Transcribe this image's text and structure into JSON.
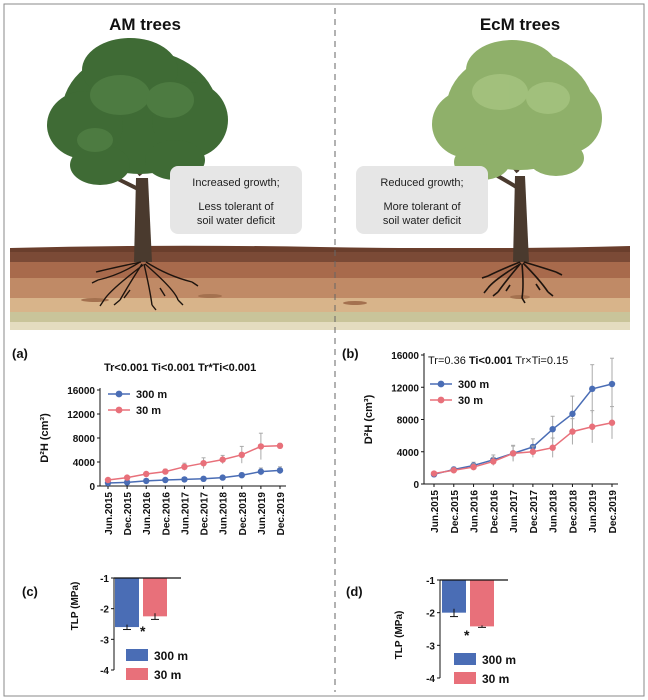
{
  "header": {
    "left_title": "AM trees",
    "right_title": "EcM trees"
  },
  "callouts": {
    "left": [
      "Increased growth;",
      "Less tolerant of",
      "soil water deficit"
    ],
    "right": [
      "Reduced growth;",
      "More tolerant of",
      "soil water deficit"
    ]
  },
  "colors": {
    "series_300m": "#4a6db5",
    "series_30m": "#e8707a",
    "am_canopy": "#3f6b35",
    "ecm_canopy": "#8fb06a",
    "soil": "#a86a4c"
  },
  "chart_data": [
    {
      "id": "a",
      "type": "line",
      "panel_label": "(a)",
      "stats": [
        {
          "text": "Tr<0.001",
          "bold": true
        },
        {
          "text": "Ti<0.001",
          "bold": true
        },
        {
          "text": "Tr*Ti<0.001",
          "bold": true
        }
      ],
      "ylabel": "D²H (cm³)",
      "ylim": [
        0,
        16000
      ],
      "yticks": [
        "0",
        "4000",
        "8000",
        "12000",
        "16000"
      ],
      "categories": [
        "Jun.2015",
        "Dec.2015",
        "Jun.2016",
        "Dec.2016",
        "Jun.2017",
        "Dec.2017",
        "Jun.2018",
        "Dec.2018",
        "Jun.2019",
        "Dec.2019"
      ],
      "series": [
        {
          "name": "300 m",
          "values": [
            500,
            600,
            850,
            1000,
            1100,
            1200,
            1400,
            1800,
            2400,
            2600
          ],
          "errors": [
            100,
            100,
            150,
            200,
            200,
            250,
            300,
            400,
            600,
            600
          ]
        },
        {
          "name": "30 m",
          "values": [
            1000,
            1400,
            2000,
            2400,
            3200,
            3800,
            4400,
            5200,
            6600,
            6700
          ],
          "errors": [
            200,
            250,
            300,
            400,
            600,
            900,
            700,
            1400,
            2200,
            400
          ]
        }
      ],
      "legend": "top-left"
    },
    {
      "id": "b",
      "type": "line",
      "panel_label": "(b)",
      "stats": [
        {
          "text": "Tr=0.36",
          "bold": false
        },
        {
          "text": "Ti<0.001",
          "bold": true
        },
        {
          "text": "Tr×Ti=0.15",
          "bold": false
        }
      ],
      "ylabel": "D²H (cm³)",
      "ylim": [
        0,
        16000
      ],
      "yticks": [
        "0",
        "4000",
        "8000",
        "12000",
        "16000"
      ],
      "categories": [
        "Jun.2015",
        "Dec.2015",
        "Jun.2016",
        "Dec.2016",
        "Jun.2017",
        "Dec.2017",
        "Jun.2018",
        "Dec.2018",
        "Jun.2019",
        "Dec.2019"
      ],
      "series": [
        {
          "name": "300 m",
          "values": [
            1200,
            1800,
            2300,
            3000,
            3800,
            4600,
            6800,
            8700,
            11800,
            12400
          ],
          "errors": [
            200,
            300,
            400,
            600,
            900,
            1000,
            1600,
            2200,
            3000,
            3200
          ]
        },
        {
          "name": "30 m",
          "values": [
            1300,
            1700,
            2100,
            2800,
            3800,
            4000,
            4500,
            6500,
            7100,
            7600
          ],
          "errors": [
            200,
            300,
            400,
            500,
            1000,
            700,
            1200,
            1600,
            2000,
            2000
          ]
        }
      ],
      "legend": "top-left"
    },
    {
      "id": "c",
      "type": "bar",
      "panel_label": "(c)",
      "ylabel": "TLP (MPa)",
      "ylim": [
        -4,
        -1
      ],
      "yticks": [
        "-1",
        "-2",
        "-3",
        "-4"
      ],
      "categories": [
        "300 m",
        "30 m"
      ],
      "values": [
        -2.6,
        -2.25
      ],
      "errors": [
        0.08,
        0.1
      ],
      "significance": "*",
      "legend": "bottom"
    },
    {
      "id": "d",
      "type": "bar",
      "panel_label": "(d)",
      "ylabel": "TLP (MPa)",
      "ylim": [
        -4,
        -1
      ],
      "yticks": [
        "-1",
        "-2",
        "-3",
        "-4"
      ],
      "categories": [
        "300 m",
        "30 m"
      ],
      "values": [
        -2.0,
        -2.42
      ],
      "errors": [
        0.12,
        0.03
      ],
      "significance": "*",
      "legend": "bottom"
    }
  ]
}
